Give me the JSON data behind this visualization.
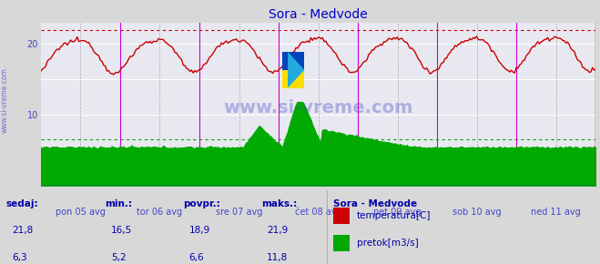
{
  "title": "Sora - Medvode",
  "title_color": "#0000cc",
  "bg_color": "#d8d8d8",
  "plot_bg_color": "#e8e8f0",
  "grid_color": "#ffffff",
  "x_tick_labels": [
    "pon 05 avg",
    "tor 06 avg",
    "sre 07 avg",
    "čet 08 avg",
    "pet 09 avg",
    "sob 10 avg",
    "ned 11 avg"
  ],
  "y_ticks": [
    10,
    20
  ],
  "ylim": [
    0,
    23.0
  ],
  "temp_color": "#cc0000",
  "flow_color": "#00aa00",
  "watermark_color": "#4444cc",
  "vline_color_magenta": "#cc00cc",
  "vline_color_gray": "#aaaaaa",
  "temp_max": 21.9,
  "temp_min": 16.5,
  "temp_avg": 18.9,
  "temp_current": 21.8,
  "flow_max": 11.8,
  "flow_min": 5.2,
  "flow_avg": 6.6,
  "flow_current": 6.3,
  "legend_title": "Sora - Medvode",
  "legend_labels": [
    "temperatura[C]",
    "pretok[m3/s]"
  ],
  "footer_labels": [
    "sedaj:",
    "min.:",
    "povpr.:",
    "maks.:"
  ],
  "footer_color": "#0000aa",
  "n_points": 336,
  "blue_line_color": "#0000ff",
  "border_color": "#cc0000"
}
